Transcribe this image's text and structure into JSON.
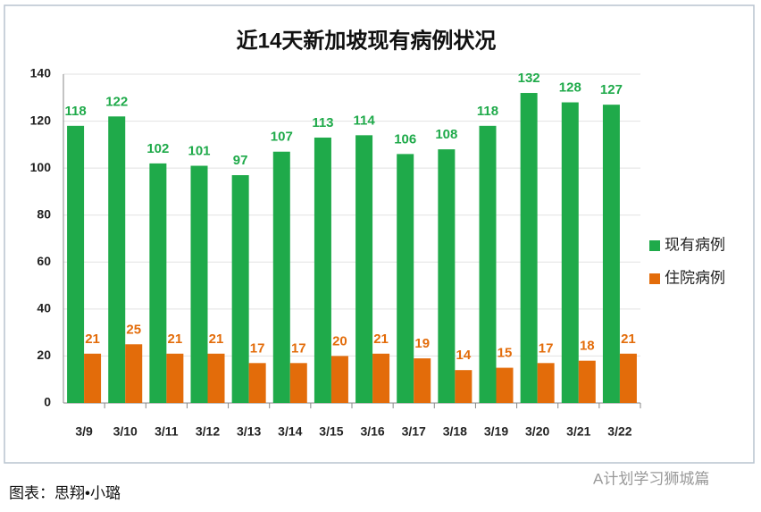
{
  "chart_data": {
    "type": "bar",
    "title": "近14天新加坡现有病例状况",
    "categories": [
      "3/9",
      "3/10",
      "3/11",
      "3/12",
      "3/13",
      "3/14",
      "3/15",
      "3/16",
      "3/17",
      "3/18",
      "3/19",
      "3/20",
      "3/21",
      "3/22"
    ],
    "series": [
      {
        "name": "现有病例",
        "color": "#1faa4a",
        "values": [
          118,
          122,
          102,
          101,
          97,
          107,
          113,
          114,
          106,
          108,
          118,
          132,
          128,
          127
        ]
      },
      {
        "name": "住院病例",
        "color": "#e36c0a",
        "values": [
          21,
          25,
          21,
          21,
          17,
          17,
          20,
          21,
          19,
          14,
          15,
          17,
          18,
          21
        ]
      }
    ],
    "ylim": [
      0,
      140
    ],
    "yticks": [
      0,
      20,
      40,
      60,
      80,
      100,
      120,
      140
    ],
    "grid": true,
    "legend": "right"
  },
  "caption": "图表：思翔•小璐",
  "watermark": "A计划学习狮城篇"
}
